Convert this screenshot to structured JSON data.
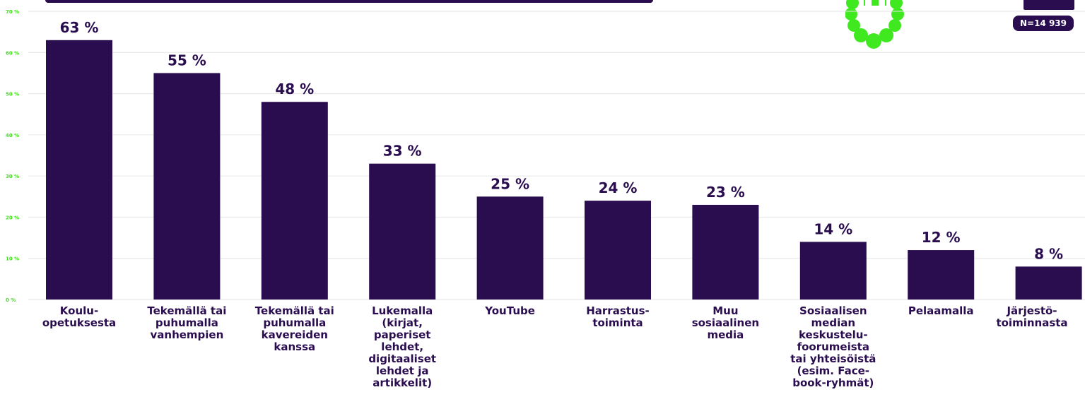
{
  "sample_badge": "N=14 939",
  "colors": {
    "bar": "#2a0d4f",
    "tick_label": "#41e01c",
    "mascot": "#3fe81f",
    "grid": "#e6e6e6"
  },
  "icons": {
    "mascot": "green-robot-mascot-icon"
  },
  "chart_data": {
    "type": "bar",
    "categories": [
      "Koulu-\nopetuksesta",
      "Tekemällä tai\npuhumalla\nvanhempien",
      "Tekemällä tai\npuhumalla\nkavereiden\nkanssa",
      "Lukemalla\n(kirjat,\npaperiset\nlehdet,\ndigitaaliset\nlehdet ja\nartikkelit)",
      "YouTube",
      "Harrastus-\ntoiminta",
      "Muu\nsosiaalinen\nmedia",
      "Sosiaalisen\nmedian\nkeskustelu-\nfoorumeista\ntai yhteisöistä\n(esim. Face-\nbook-ryhmät)",
      "Pelaamalla",
      "Järjestö-\ntoiminnasta"
    ],
    "values": [
      63,
      55,
      48,
      33,
      25,
      24,
      23,
      14,
      12,
      8
    ],
    "value_labels": [
      "63 %",
      "55 %",
      "48 %",
      "33 %",
      "25 %",
      "24 %",
      "23 %",
      "14 %",
      "12 %",
      "8 %"
    ],
    "yticks": [
      0,
      10,
      20,
      30,
      40,
      50,
      60,
      70
    ],
    "ytick_labels": [
      "0 %",
      "10 %",
      "20 %",
      "30 %",
      "40 %",
      "50 %",
      "60 %",
      "70 %"
    ],
    "ylim": [
      0,
      70
    ],
    "grid": true,
    "legend": "none"
  }
}
